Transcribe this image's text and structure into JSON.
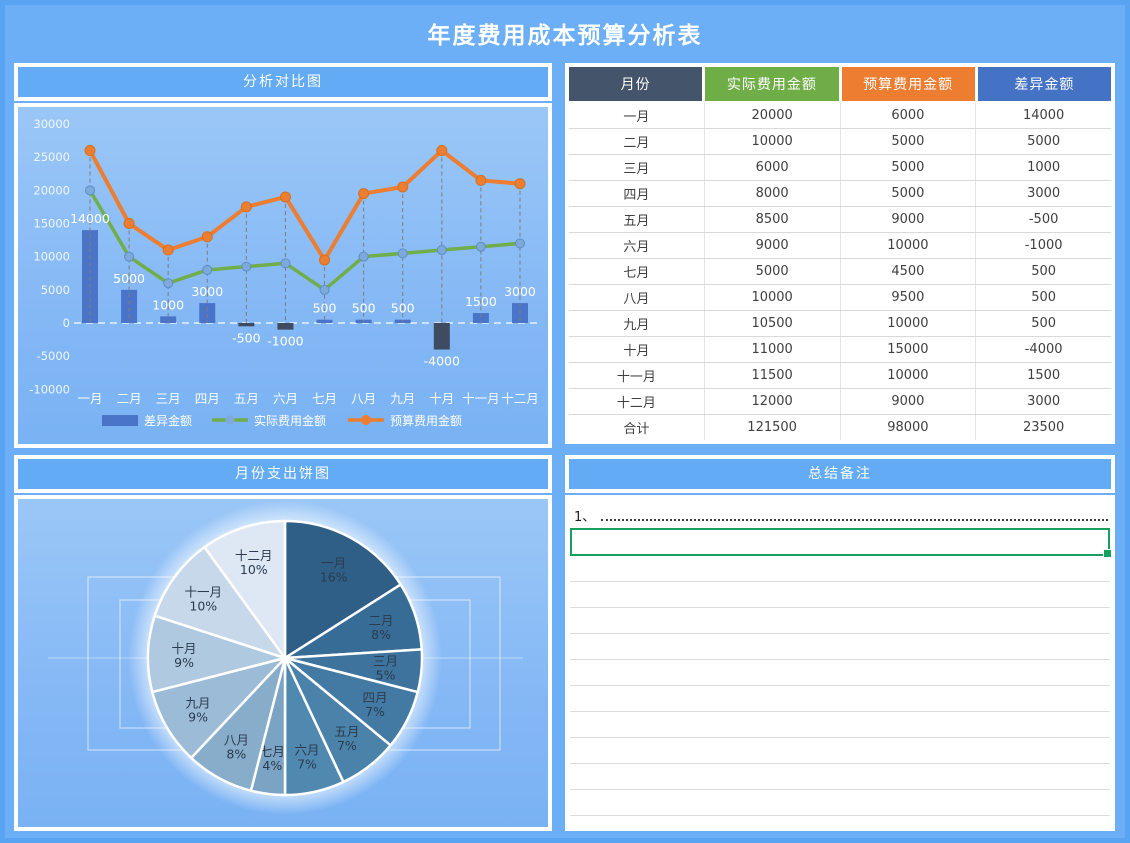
{
  "page": {
    "title": "年度费用成本预算分析表"
  },
  "panels": {
    "comparison": {
      "title": "分析对比图"
    },
    "pie": {
      "title": "月份支出饼图"
    },
    "notes": {
      "title": "总结备注",
      "line1_prefix": "1、"
    }
  },
  "table": {
    "headers": [
      "月份",
      "实际费用金额",
      "预算费用金额",
      "差异金额"
    ],
    "header_colors": [
      "#44546A",
      "#6FAD47",
      "#ED7D31",
      "#4472C4"
    ],
    "rows": [
      [
        "一月",
        "20000",
        "6000",
        "14000"
      ],
      [
        "二月",
        "10000",
        "5000",
        "5000"
      ],
      [
        "三月",
        "6000",
        "5000",
        "1000"
      ],
      [
        "四月",
        "8000",
        "5000",
        "3000"
      ],
      [
        "五月",
        "8500",
        "9000",
        "-500"
      ],
      [
        "六月",
        "9000",
        "10000",
        "-1000"
      ],
      [
        "七月",
        "5000",
        "4500",
        "500"
      ],
      [
        "八月",
        "10000",
        "9500",
        "500"
      ],
      [
        "九月",
        "10500",
        "10000",
        "500"
      ],
      [
        "十月",
        "11000",
        "15000",
        "-4000"
      ],
      [
        "十一月",
        "11500",
        "10000",
        "1500"
      ],
      [
        "十二月",
        "12000",
        "9000",
        "3000"
      ],
      [
        "合计",
        "121500",
        "98000",
        "23500"
      ]
    ]
  },
  "chart_data": [
    {
      "type": "combo-bar-line",
      "title": "分析对比图",
      "categories": [
        "一月",
        "二月",
        "三月",
        "四月",
        "五月",
        "六月",
        "七月",
        "八月",
        "九月",
        "十月",
        "十一月",
        "十二月"
      ],
      "series": [
        {
          "name": "差异金额",
          "type": "bar",
          "values": [
            14000,
            5000,
            1000,
            3000,
            -500,
            -1000,
            500,
            500,
            500,
            -4000,
            1500,
            3000
          ],
          "color_positive": "#4A74C8",
          "color_negative": "#3E4B61"
        },
        {
          "name": "实际费用金额",
          "type": "line",
          "values": [
            20000,
            10000,
            6000,
            8000,
            8500,
            9000,
            5000,
            10000,
            10500,
            11000,
            11500,
            12000
          ],
          "color": "#6FAE49",
          "marker_color": "#7DA9DB"
        },
        {
          "name": "预算费用金额",
          "type": "line",
          "stacked_on": "实际费用金额",
          "values": [
            6000,
            5000,
            5000,
            5000,
            9000,
            10000,
            4500,
            9500,
            10000,
            15000,
            10000,
            9000
          ],
          "plotted_values": [
            26000,
            15000,
            11000,
            13000,
            17500,
            19000,
            9500,
            19500,
            20500,
            26000,
            21500,
            21000
          ],
          "color": "#ED7D31",
          "marker_color": "#ED7D31"
        }
      ],
      "ylim": [
        -10000,
        30000
      ],
      "yticks": [
        30000,
        25000,
        20000,
        15000,
        10000,
        5000,
        0,
        -5000,
        -10000
      ],
      "grid": "zero-line-only",
      "legend_position": "bottom"
    },
    {
      "type": "pie",
      "title": "月份支出饼图",
      "labels": [
        "一月",
        "二月",
        "三月",
        "四月",
        "五月",
        "六月",
        "七月",
        "八月",
        "九月",
        "十月",
        "十一月",
        "十二月"
      ],
      "values": [
        16,
        8,
        5,
        7,
        7,
        7,
        4,
        8,
        9,
        9,
        10,
        10
      ],
      "value_suffix": "%",
      "colors": [
        "#2F5E86",
        "#376C96",
        "#3D739D",
        "#437AA3",
        "#4A82AA",
        "#5089B0",
        "#7BA3C4",
        "#87ADCB",
        "#9BBBD6",
        "#AFC9E0",
        "#C6D8EA",
        "#DDE8F4"
      ],
      "label_color": "#2B3B4E",
      "start_angle": "top",
      "direction": "clockwise"
    }
  ]
}
